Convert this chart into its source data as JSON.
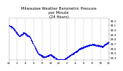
{
  "title": "Milwaukee Weather Barometric Pressure\nper Minute\n(24 Hours)",
  "title_fontsize": 3.8,
  "bg_color": "#ffffff",
  "plot_bg_color": "#ffffff",
  "dot_color": "#0000ee",
  "dot_size": 0.35,
  "y_label_color": "#000000",
  "x_label_color": "#000000",
  "grid_color": "#aaaaaa",
  "ylim": [
    29.35,
    30.25
  ],
  "xlim": [
    0,
    1440
  ],
  "yticks": [
    29.4,
    29.5,
    29.6,
    29.7,
    29.8,
    29.9,
    30.0,
    30.1,
    30.2
  ],
  "xtick_positions": [
    0,
    120,
    240,
    360,
    480,
    600,
    720,
    840,
    960,
    1080,
    1200,
    1320,
    1440
  ],
  "xtick_labels": [
    "12",
    "2",
    "4",
    "6",
    "8",
    "10",
    "12",
    "2",
    "4",
    "6",
    "8",
    "10",
    "12"
  ],
  "fontsize_ticks": 3.0,
  "title_color": "#000000"
}
